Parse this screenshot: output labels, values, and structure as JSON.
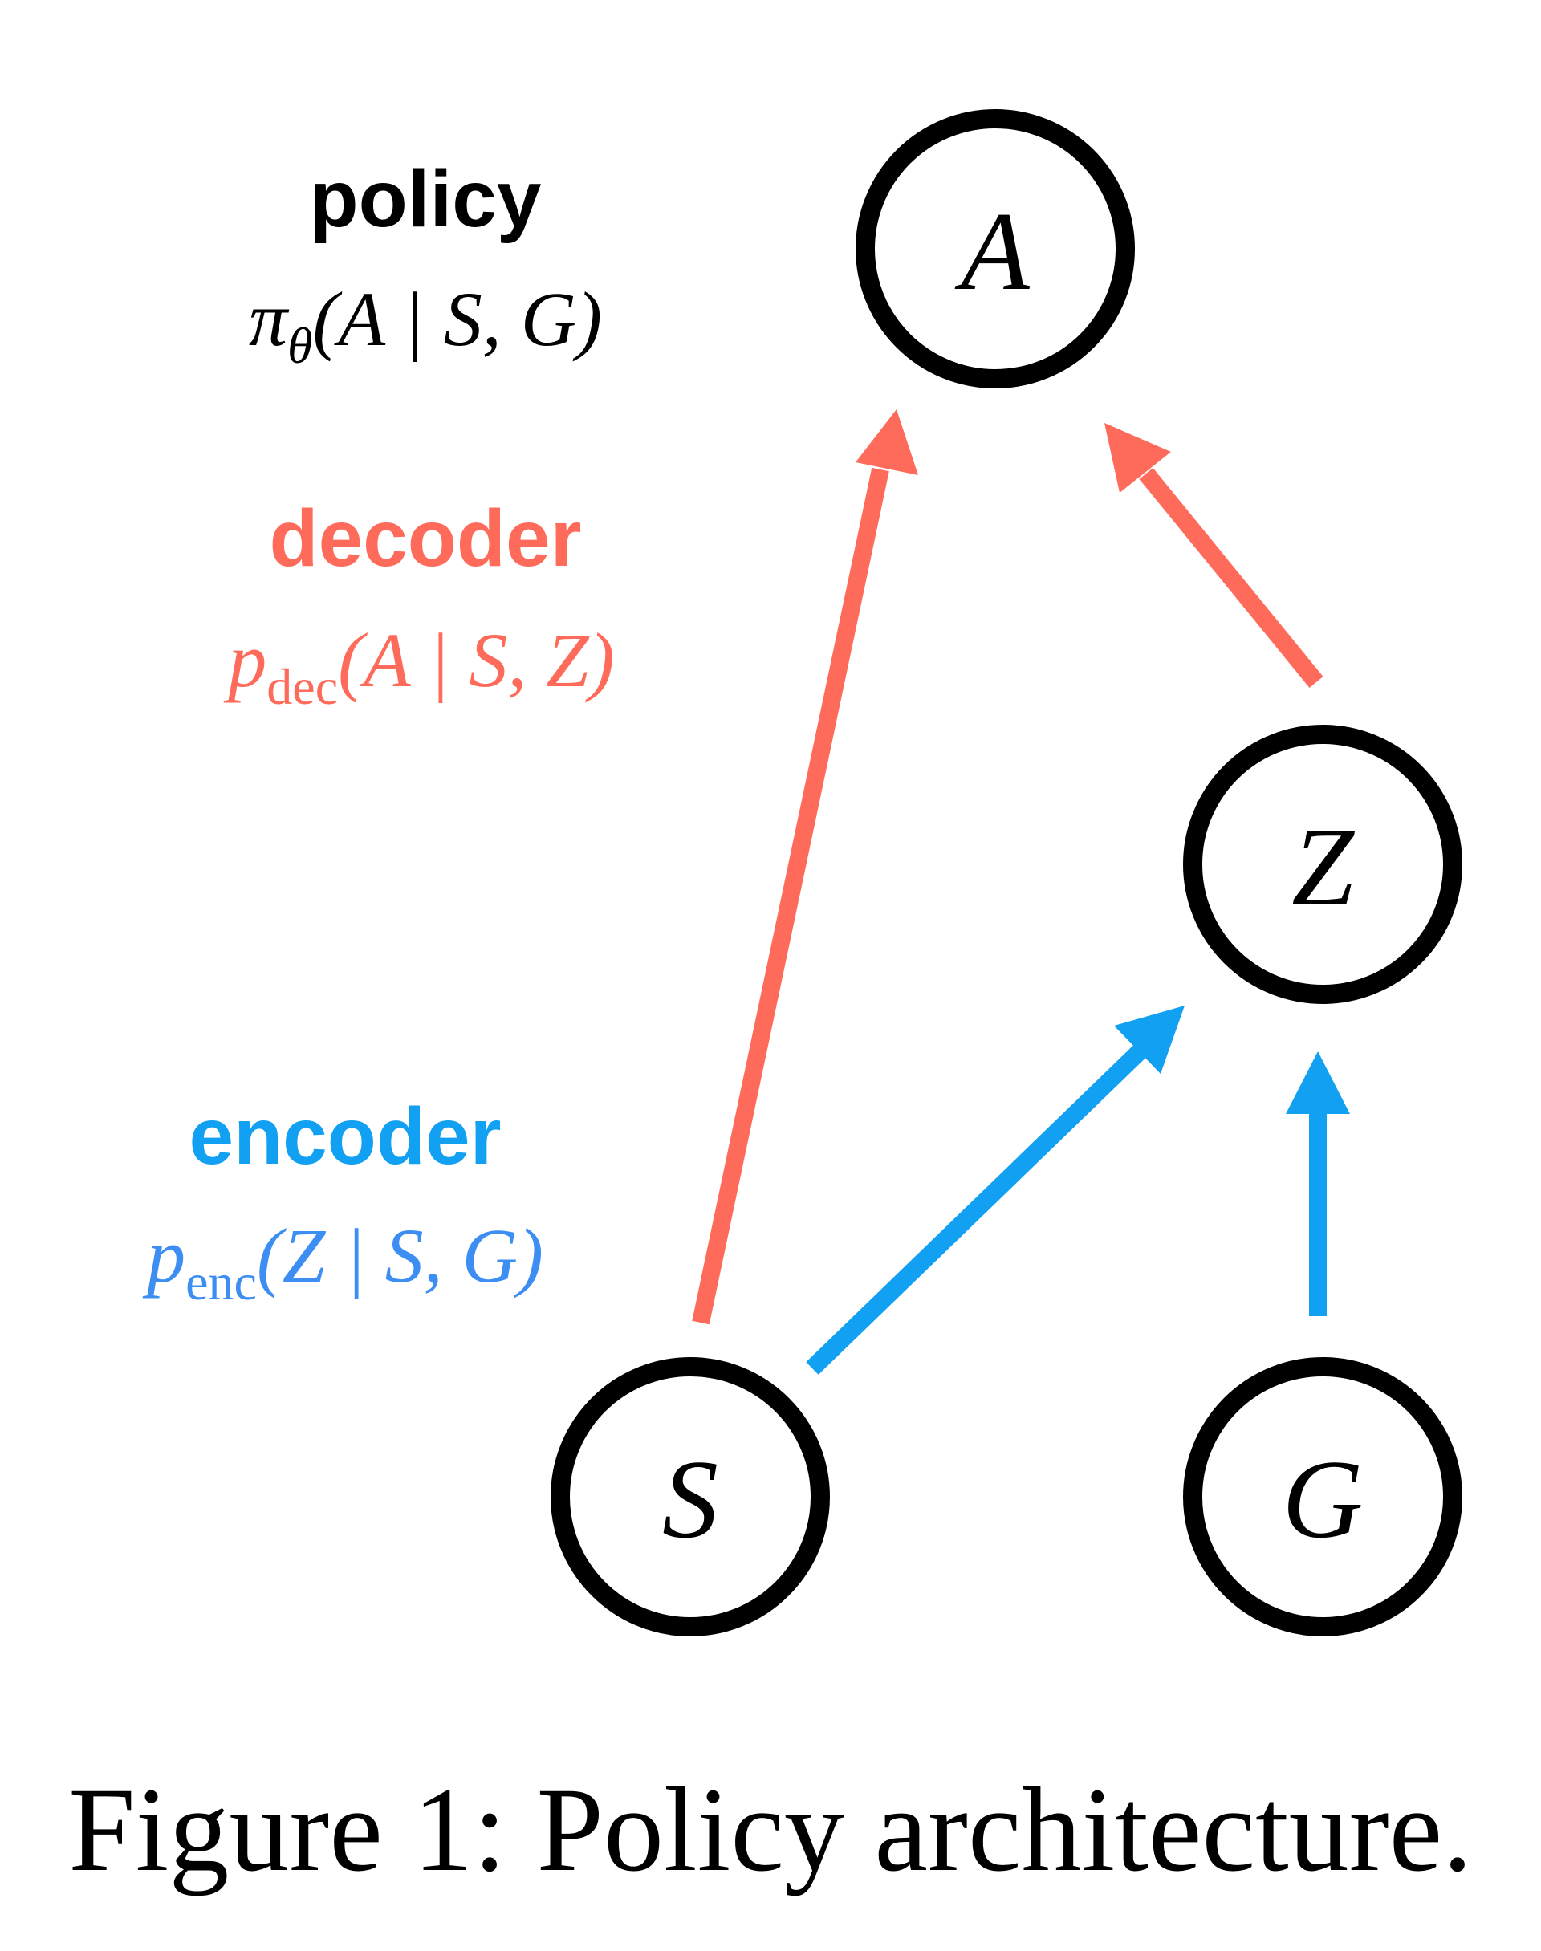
{
  "colors": {
    "policy": "#000000",
    "decoder": "#ff6b5a",
    "encoder": "#12a0f2",
    "encoder_formula": "#3d8ef2",
    "node_stroke": "#000000"
  },
  "labels": {
    "policy": {
      "title": "policy",
      "formula_symbol": "π",
      "formula_sub": "θ",
      "formula_args": "(A | S, G)"
    },
    "decoder": {
      "title": "decoder",
      "formula_symbol": "p",
      "formula_sub": "dec",
      "formula_args": "(A | S, Z)"
    },
    "encoder": {
      "title": "encoder",
      "formula_symbol": "p",
      "formula_sub": "enc",
      "formula_args": "(Z | S, G)"
    }
  },
  "nodes": {
    "a": "A",
    "z": "Z",
    "s": "S",
    "g": "G"
  },
  "edges": [
    {
      "from": "S",
      "to": "A",
      "color": "decoder"
    },
    {
      "from": "Z",
      "to": "A",
      "color": "decoder"
    },
    {
      "from": "S",
      "to": "Z",
      "color": "encoder"
    },
    {
      "from": "G",
      "to": "Z",
      "color": "encoder"
    }
  ],
  "caption": "Figure 1: Policy architecture."
}
